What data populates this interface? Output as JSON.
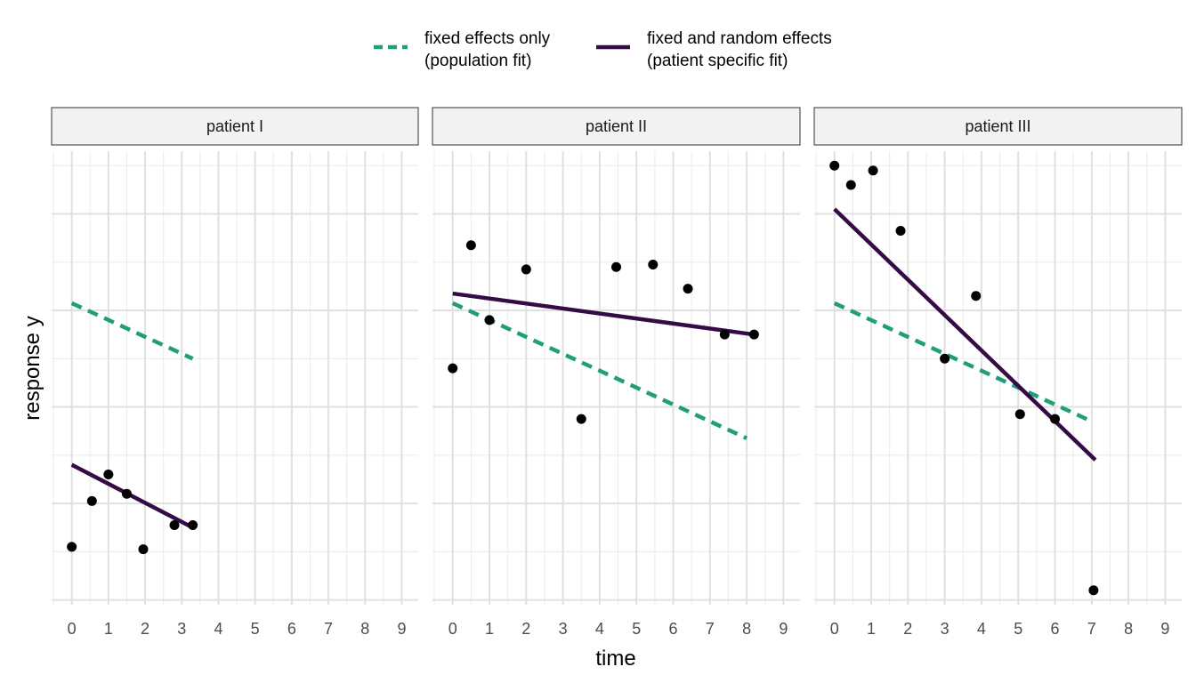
{
  "chart_data": {
    "type": "line",
    "xlabel": "time",
    "ylabel": "response y",
    "xlim": [
      -0.55,
      9.45
    ],
    "ylim": [
      -0.1,
      9.3
    ],
    "x_ticks": [
      0,
      1,
      2,
      3,
      4,
      5,
      6,
      7,
      8,
      9
    ],
    "grid": true,
    "legend_position": "top",
    "legend": [
      {
        "key": "fixed",
        "line1": "fixed effects only",
        "line2": "(population fit)",
        "color": "#1f9e77",
        "style": "dashed"
      },
      {
        "key": "random",
        "line1": "fixed and random effects",
        "line2": "(patient specific fit)",
        "color": "#350b45",
        "style": "solid"
      }
    ],
    "panels": [
      {
        "label": "patient I",
        "points": [
          [
            0.0,
            1.1
          ],
          [
            0.55,
            2.05
          ],
          [
            1.0,
            2.6
          ],
          [
            1.5,
            2.2
          ],
          [
            1.95,
            1.05
          ],
          [
            2.8,
            1.55
          ],
          [
            3.3,
            1.55
          ]
        ],
        "fixed_line": [
          [
            0.0,
            6.15
          ],
          [
            3.3,
            5.0
          ]
        ],
        "random_line": [
          [
            0.0,
            2.8
          ],
          [
            3.3,
            1.5
          ]
        ]
      },
      {
        "label": "patient II",
        "points": [
          [
            0.0,
            4.8
          ],
          [
            0.5,
            7.35
          ],
          [
            1.0,
            5.8
          ],
          [
            2.0,
            6.85
          ],
          [
            3.5,
            3.75
          ],
          [
            4.45,
            6.9
          ],
          [
            5.45,
            6.95
          ],
          [
            6.4,
            6.45
          ],
          [
            7.4,
            5.5
          ],
          [
            8.2,
            5.5
          ]
        ],
        "fixed_line": [
          [
            0.0,
            6.15
          ],
          [
            8.0,
            3.35
          ]
        ],
        "random_line": [
          [
            0.0,
            6.35
          ],
          [
            8.2,
            5.5
          ]
        ]
      },
      {
        "label": "patient III",
        "points": [
          [
            0.0,
            9.0
          ],
          [
            0.45,
            8.6
          ],
          [
            1.05,
            8.9
          ],
          [
            1.8,
            7.65
          ],
          [
            3.0,
            5.0
          ],
          [
            3.85,
            6.3
          ],
          [
            5.05,
            3.85
          ],
          [
            6.0,
            3.75
          ],
          [
            7.05,
            0.2
          ]
        ],
        "fixed_line": [
          [
            0.0,
            6.15
          ],
          [
            7.0,
            3.7
          ]
        ],
        "random_line": [
          [
            0.0,
            8.1
          ],
          [
            7.1,
            2.9
          ]
        ]
      }
    ]
  }
}
